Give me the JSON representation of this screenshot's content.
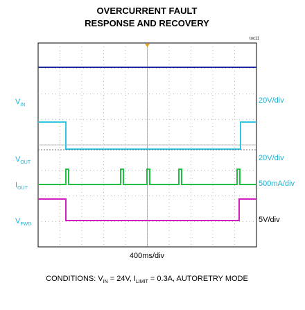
{
  "header": {
    "title_lines": [
      "OVERCURRENT FAULT",
      "RESPONSE AND RECOVERY"
    ],
    "figure_id": "toc11"
  },
  "channels": [
    {
      "label": {
        "main": "V",
        "sub": "IN"
      },
      "scale": "20V/div"
    },
    {
      "label": {
        "main": "V",
        "sub": "OUT"
      },
      "scale": "20V/div"
    },
    {
      "label": {
        "main": "I",
        "sub": "OUT"
      },
      "scale": "500mA/div"
    },
    {
      "label": {
        "main": "V",
        "sub": "FWD"
      },
      "scale": "5V/div"
    }
  ],
  "time_scale": "400ms/div",
  "conditions": {
    "prefix": "CONDITIONS: ",
    "v_main": "V",
    "v_sub": "IN",
    "v_rest": " = 24V, ",
    "i_main": "I",
    "i_sub": "LIMIT",
    "i_rest": " = 0.3A, AUTORETRY MODE"
  }
}
